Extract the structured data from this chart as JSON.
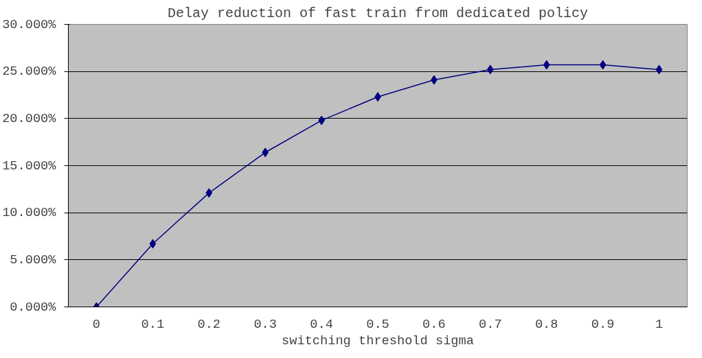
{
  "chart_data": {
    "type": "line",
    "title": "Delay reduction of fast train from dedicated policy",
    "xlabel": "switching threshold sigma",
    "categories": [
      "0",
      "0.1",
      "0.2",
      "0.3",
      "0.4",
      "0.5",
      "0.6",
      "0.7",
      "0.8",
      "0.9",
      "1"
    ],
    "series": [
      {
        "color": "#000080",
        "values": [
          0,
          6.7,
          12.1,
          16.4,
          19.8,
          22.3,
          24.1,
          25.2,
          25.7,
          25.7,
          25.2
        ]
      }
    ],
    "ylim": [
      0,
      30
    ],
    "yticks": [
      {
        "value": 0,
        "label": "0.000%"
      },
      {
        "value": 5,
        "label": "5.000%"
      },
      {
        "value": 10,
        "label": "10.000%"
      },
      {
        "value": 15,
        "label": "15.000%"
      },
      {
        "value": 20,
        "label": "20.000%"
      },
      {
        "value": 25,
        "label": "25.000%"
      },
      {
        "value": 30,
        "label": "30.000%"
      }
    ],
    "grid": "y",
    "marker": "diamond",
    "line_style": "solid"
  }
}
